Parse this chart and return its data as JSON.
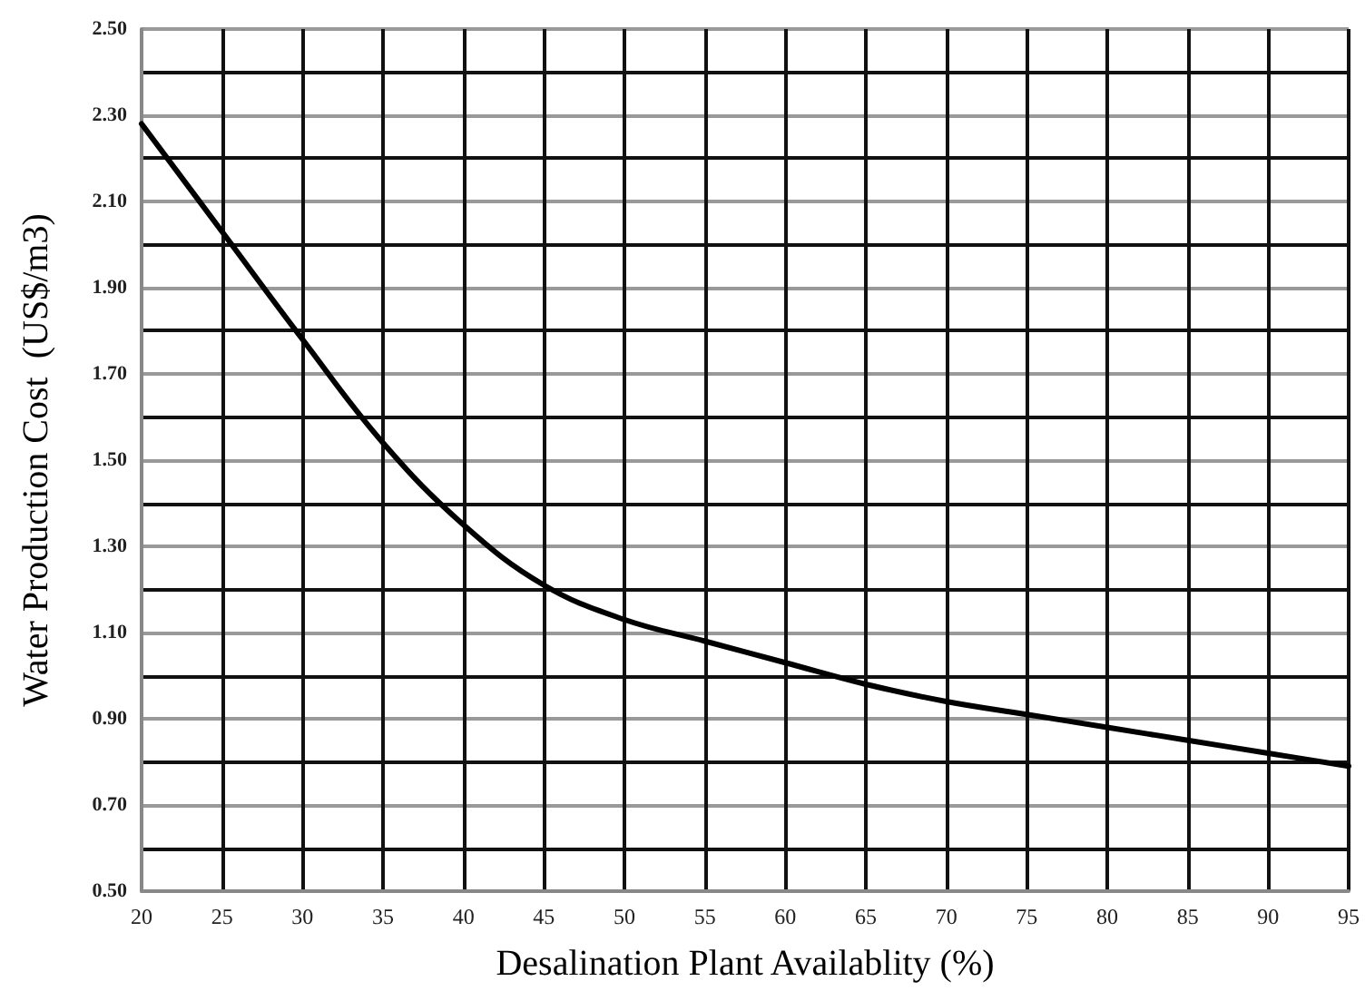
{
  "chart_data": {
    "type": "line",
    "xlabel": "Desalination Plant Availablity (%)",
    "ylabel": "Water Production Cost  (US$/m3)",
    "x": [
      20,
      25,
      30,
      35,
      40,
      45,
      50,
      55,
      60,
      65,
      70,
      75,
      80,
      85,
      90,
      95
    ],
    "series": [
      {
        "color": "#000000",
        "values": [
          2.28,
          2.03,
          1.78,
          1.54,
          1.35,
          1.21,
          1.13,
          1.08,
          1.03,
          0.98,
          0.94,
          0.91,
          0.88,
          0.85,
          0.82,
          0.79
        ]
      }
    ],
    "xlim": [
      20,
      95
    ],
    "xticks": [
      20,
      25,
      30,
      35,
      40,
      45,
      50,
      55,
      60,
      65,
      70,
      75,
      80,
      85,
      90,
      95
    ],
    "ylim": [
      0.5,
      2.5
    ],
    "yticks": [
      {
        "value": 0.5,
        "label": "0.50"
      },
      {
        "value": 0.6,
        "label": null
      },
      {
        "value": 0.7,
        "label": "0.70"
      },
      {
        "value": 0.8,
        "label": null
      },
      {
        "value": 0.9,
        "label": "0.90"
      },
      {
        "value": 1.0,
        "label": null
      },
      {
        "value": 1.1,
        "label": "1.10"
      },
      {
        "value": 1.2,
        "label": null
      },
      {
        "value": 1.3,
        "label": "1.30"
      },
      {
        "value": 1.4,
        "label": null
      },
      {
        "value": 1.5,
        "label": "1.50"
      },
      {
        "value": 1.6,
        "label": null
      },
      {
        "value": 1.7,
        "label": "1.70"
      },
      {
        "value": 1.8,
        "label": null
      },
      {
        "value": 1.9,
        "label": "1.90"
      },
      {
        "value": 2.0,
        "label": null
      },
      {
        "value": 2.1,
        "label": "2.10"
      },
      {
        "value": 2.2,
        "label": null
      },
      {
        "value": 2.3,
        "label": "2.30"
      },
      {
        "value": 2.4,
        "label": null
      },
      {
        "value": 2.5,
        "label": "2.50"
      }
    ],
    "grid": true,
    "marker": "none",
    "line_style": "solid"
  }
}
